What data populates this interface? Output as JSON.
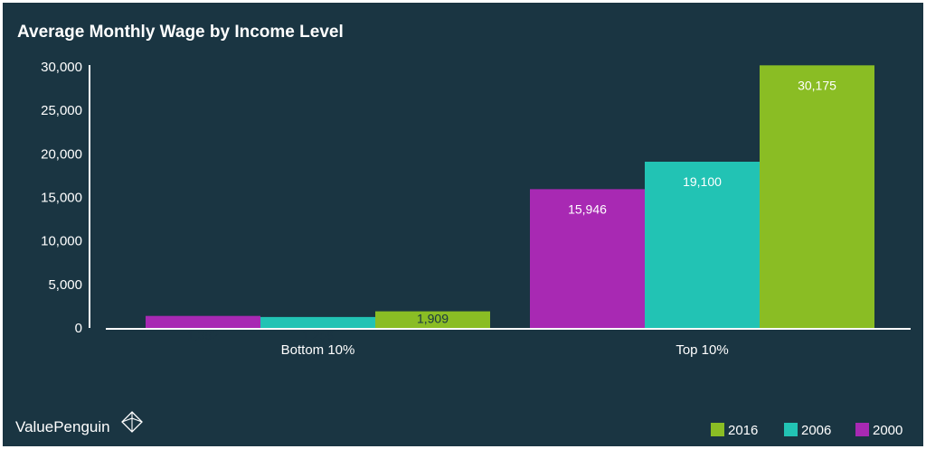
{
  "chart_data": {
    "type": "bar",
    "title": "Average Monthly Wage by Income Level",
    "categories": [
      "Bottom 10%",
      "Top 10%"
    ],
    "series": [
      {
        "name": "2000",
        "color": "#a829b3",
        "values": [
          1382,
          15946
        ],
        "labels": [
          "1,382",
          "15,946"
        ]
      },
      {
        "name": "2006",
        "color": "#22c3b4",
        "values": [
          1258,
          19100
        ],
        "labels": [
          "1,258",
          "19,100"
        ]
      },
      {
        "name": "2016",
        "color": "#8abd24",
        "values": [
          1909,
          30175
        ],
        "labels": [
          "1,909",
          "30,175"
        ]
      }
    ],
    "ylim": [
      0,
      30000
    ],
    "yticks": [
      0,
      5000,
      10000,
      15000,
      20000,
      25000,
      30000
    ],
    "ytick_labels": [
      "0",
      "5,000",
      "10,000",
      "15,000",
      "20,000",
      "25,000",
      "30,000"
    ],
    "grid": false,
    "legend_placement": "bottom-right",
    "legend_order": [
      "2016",
      "2006",
      "2000"
    ]
  },
  "brand": {
    "name": "ValuePenguin",
    "logo_icon": "diamond-logo-icon"
  },
  "colors": {
    "background": "#1a3542",
    "axis": "#ffffff",
    "text": "#ffffff"
  }
}
